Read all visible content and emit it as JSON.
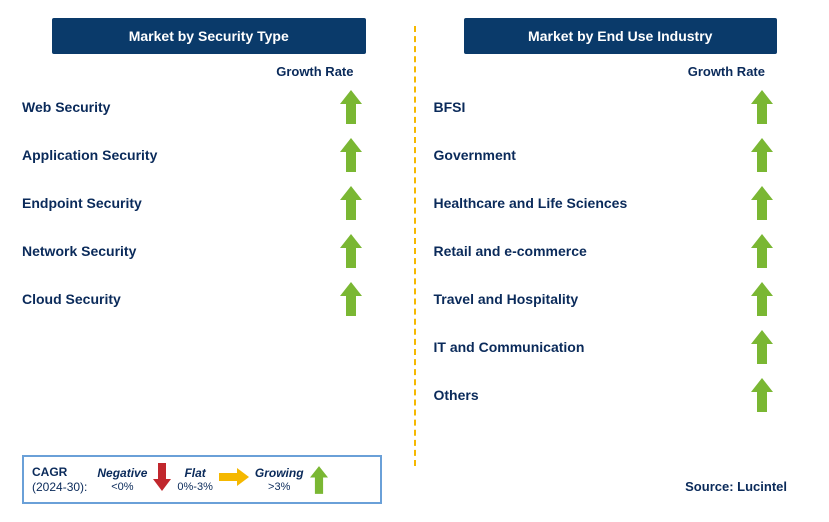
{
  "colors": {
    "header_bg": "#0a3a6a",
    "header_fg": "#ffffff",
    "text": "#0a2a5a",
    "divider": "#f5b800",
    "legend_border": "#6aa0d8",
    "arrow_green": "#7ab733",
    "arrow_yellow": "#f5b800",
    "arrow_red": "#c1272d",
    "background": "#ffffff"
  },
  "growth_header": "Growth Rate",
  "left": {
    "title": "Market by Security Type",
    "items": [
      {
        "label": "Web Security",
        "growth": "growing"
      },
      {
        "label": "Application Security",
        "growth": "growing"
      },
      {
        "label": "Endpoint Security",
        "growth": "growing"
      },
      {
        "label": "Network Security",
        "growth": "growing"
      },
      {
        "label": "Cloud Security",
        "growth": "growing"
      }
    ]
  },
  "right": {
    "title": "Market by End Use Industry",
    "items": [
      {
        "label": "BFSI",
        "growth": "growing"
      },
      {
        "label": "Government",
        "growth": "growing"
      },
      {
        "label": "Healthcare and Life Sciences",
        "growth": "growing"
      },
      {
        "label": "Retail and e-commerce",
        "growth": "growing"
      },
      {
        "label": "Travel and Hospitality",
        "growth": "growing"
      },
      {
        "label": "IT and Communication",
        "growth": "growing"
      },
      {
        "label": "Others",
        "growth": "growing"
      }
    ]
  },
  "legend": {
    "prefix_line1": "CAGR",
    "prefix_line2": "(2024-30):",
    "segments": [
      {
        "label": "Negative",
        "range": "<0%",
        "icon": "down-red"
      },
      {
        "label": "Flat",
        "range": "0%-3%",
        "icon": "right-yellow"
      },
      {
        "label": "Growing",
        "range": ">3%",
        "icon": "up-green"
      }
    ]
  },
  "source": "Source: Lucintel"
}
